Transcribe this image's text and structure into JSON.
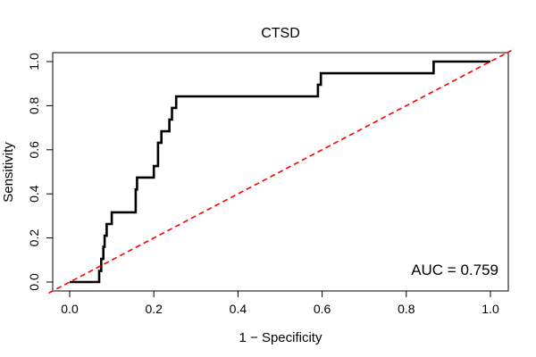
{
  "chart_data": {
    "type": "line",
    "title": "CTSD",
    "xlabel": "1 − Specificity",
    "ylabel": "Sensitivity",
    "xlim": [
      0.0,
      1.0
    ],
    "ylim": [
      0.0,
      1.0
    ],
    "x_ticks": [
      "0.0",
      "0.2",
      "0.4",
      "0.6",
      "0.8",
      "1.0"
    ],
    "y_ticks": [
      "0.0",
      "0.2",
      "0.4",
      "0.6",
      "0.8",
      "1.0"
    ],
    "grid": false,
    "legend": "none",
    "annotation": "AUC = 0.759",
    "series": [
      {
        "style": "step",
        "color": "#000000",
        "points": [
          [
            0.0,
            0.0
          ],
          [
            0.07,
            0.0
          ],
          [
            0.07,
            0.05
          ],
          [
            0.075,
            0.05
          ],
          [
            0.075,
            0.105
          ],
          [
            0.08,
            0.105
          ],
          [
            0.08,
            0.16
          ],
          [
            0.083,
            0.16
          ],
          [
            0.083,
            0.21
          ],
          [
            0.088,
            0.21
          ],
          [
            0.088,
            0.263
          ],
          [
            0.1,
            0.263
          ],
          [
            0.1,
            0.316
          ],
          [
            0.157,
            0.316
          ],
          [
            0.157,
            0.42
          ],
          [
            0.16,
            0.42
          ],
          [
            0.16,
            0.474
          ],
          [
            0.2,
            0.474
          ],
          [
            0.2,
            0.526
          ],
          [
            0.21,
            0.526
          ],
          [
            0.21,
            0.632
          ],
          [
            0.218,
            0.632
          ],
          [
            0.218,
            0.684
          ],
          [
            0.237,
            0.684
          ],
          [
            0.237,
            0.737
          ],
          [
            0.243,
            0.737
          ],
          [
            0.243,
            0.79
          ],
          [
            0.253,
            0.79
          ],
          [
            0.253,
            0.842
          ],
          [
            0.59,
            0.842
          ],
          [
            0.59,
            0.895
          ],
          [
            0.597,
            0.895
          ],
          [
            0.597,
            0.947
          ],
          [
            0.865,
            0.947
          ],
          [
            0.865,
            1.0
          ],
          [
            1.0,
            1.0
          ]
        ]
      },
      {
        "style": "dashed",
        "color": "#ff0000",
        "points": [
          [
            -0.05,
            -0.05
          ],
          [
            1.05,
            1.05
          ]
        ]
      }
    ]
  }
}
